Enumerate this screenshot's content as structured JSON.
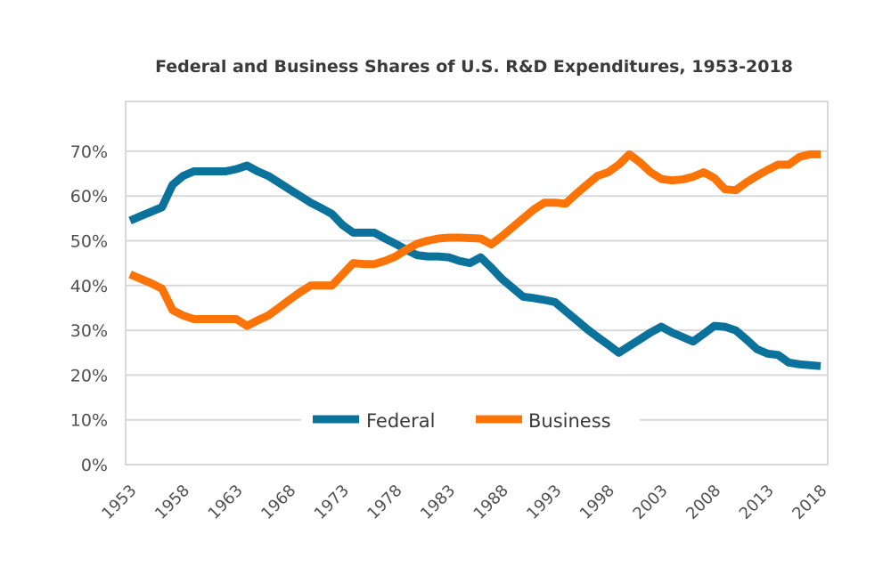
{
  "chart_data": {
    "type": "line",
    "title": "Federal and Business Shares of U.S. R&D Expenditures, 1953-2018",
    "xlabel": "",
    "ylabel": "",
    "ylim": [
      0,
      70
    ],
    "xlim": [
      1953,
      2018
    ],
    "grid": true,
    "legend_position": "bottom-center-inside",
    "y_ticks": [
      "0%",
      "10%",
      "20%",
      "30%",
      "40%",
      "50%",
      "60%",
      "70%"
    ],
    "y_tick_values": [
      0,
      10,
      20,
      30,
      40,
      50,
      60,
      70
    ],
    "x_ticks": [
      "1953",
      "1958",
      "1963",
      "1968",
      "1973",
      "1978",
      "1983",
      "1988",
      "1993",
      "1998",
      "2003",
      "2008",
      "2013",
      "2018"
    ],
    "x_tick_values": [
      1953,
      1958,
      1963,
      1968,
      1973,
      1978,
      1983,
      1988,
      1993,
      1998,
      2003,
      2008,
      2013,
      2018
    ],
    "x": [
      1953,
      1954,
      1955,
      1956,
      1957,
      1958,
      1959,
      1960,
      1961,
      1962,
      1963,
      1964,
      1965,
      1966,
      1967,
      1968,
      1969,
      1970,
      1971,
      1972,
      1973,
      1974,
      1975,
      1976,
      1977,
      1978,
      1979,
      1980,
      1981,
      1982,
      1983,
      1984,
      1985,
      1986,
      1987,
      1988,
      1989,
      1990,
      1991,
      1992,
      1993,
      1994,
      1995,
      1996,
      1997,
      1998,
      1999,
      2000,
      2001,
      2002,
      2003,
      2004,
      2005,
      2006,
      2007,
      2008,
      2009,
      2010,
      2011,
      2012,
      2013,
      2014,
      2015,
      2016,
      2017,
      2018
    ],
    "series": [
      {
        "name": "Federal",
        "color": "#0b729b",
        "values": [
          54.5,
          55.5,
          56.5,
          57.5,
          62.5,
          64.5,
          65.5,
          65.5,
          65.5,
          65.5,
          66.0,
          66.8,
          65.5,
          64.5,
          63.0,
          61.5,
          60.0,
          58.5,
          57.3,
          56.0,
          53.5,
          51.8,
          51.8,
          51.8,
          50.5,
          49.3,
          48.0,
          46.8,
          46.5,
          46.5,
          46.3,
          45.5,
          45.0,
          46.3,
          44.0,
          41.5,
          39.5,
          37.5,
          37.2,
          36.8,
          36.3,
          34.3,
          32.3,
          30.3,
          28.5,
          26.8,
          25.0,
          26.5,
          28.0,
          29.5,
          30.8,
          29.5,
          28.5,
          27.5,
          29.2,
          31.0,
          30.8,
          30.0,
          28.0,
          25.8,
          24.8,
          24.5,
          22.8,
          22.4,
          22.2,
          22.0
        ]
      },
      {
        "name": "Business",
        "color": "#fc7407",
        "values": [
          42.5,
          41.5,
          40.5,
          39.3,
          34.5,
          33.3,
          32.5,
          32.5,
          32.5,
          32.5,
          32.5,
          31.0,
          32.2,
          33.3,
          35.0,
          36.8,
          38.5,
          40.0,
          40.0,
          40.0,
          42.5,
          45.0,
          44.8,
          44.8,
          45.5,
          46.5,
          48.0,
          49.3,
          50.0,
          50.5,
          50.7,
          50.7,
          50.6,
          50.5,
          49.2,
          51.0,
          53.0,
          55.0,
          57.0,
          58.5,
          58.5,
          58.3,
          60.5,
          62.5,
          64.5,
          65.3,
          67.0,
          69.3,
          67.5,
          65.3,
          63.8,
          63.5,
          63.7,
          64.3,
          65.3,
          64.0,
          61.5,
          61.3,
          63.0,
          64.5,
          65.8,
          67.0,
          67.0,
          68.7,
          69.3,
          69.3
        ]
      }
    ],
    "legend": [
      {
        "name": "Federal",
        "color": "#0b729b"
      },
      {
        "name": "Business",
        "color": "#fc7407"
      }
    ]
  }
}
